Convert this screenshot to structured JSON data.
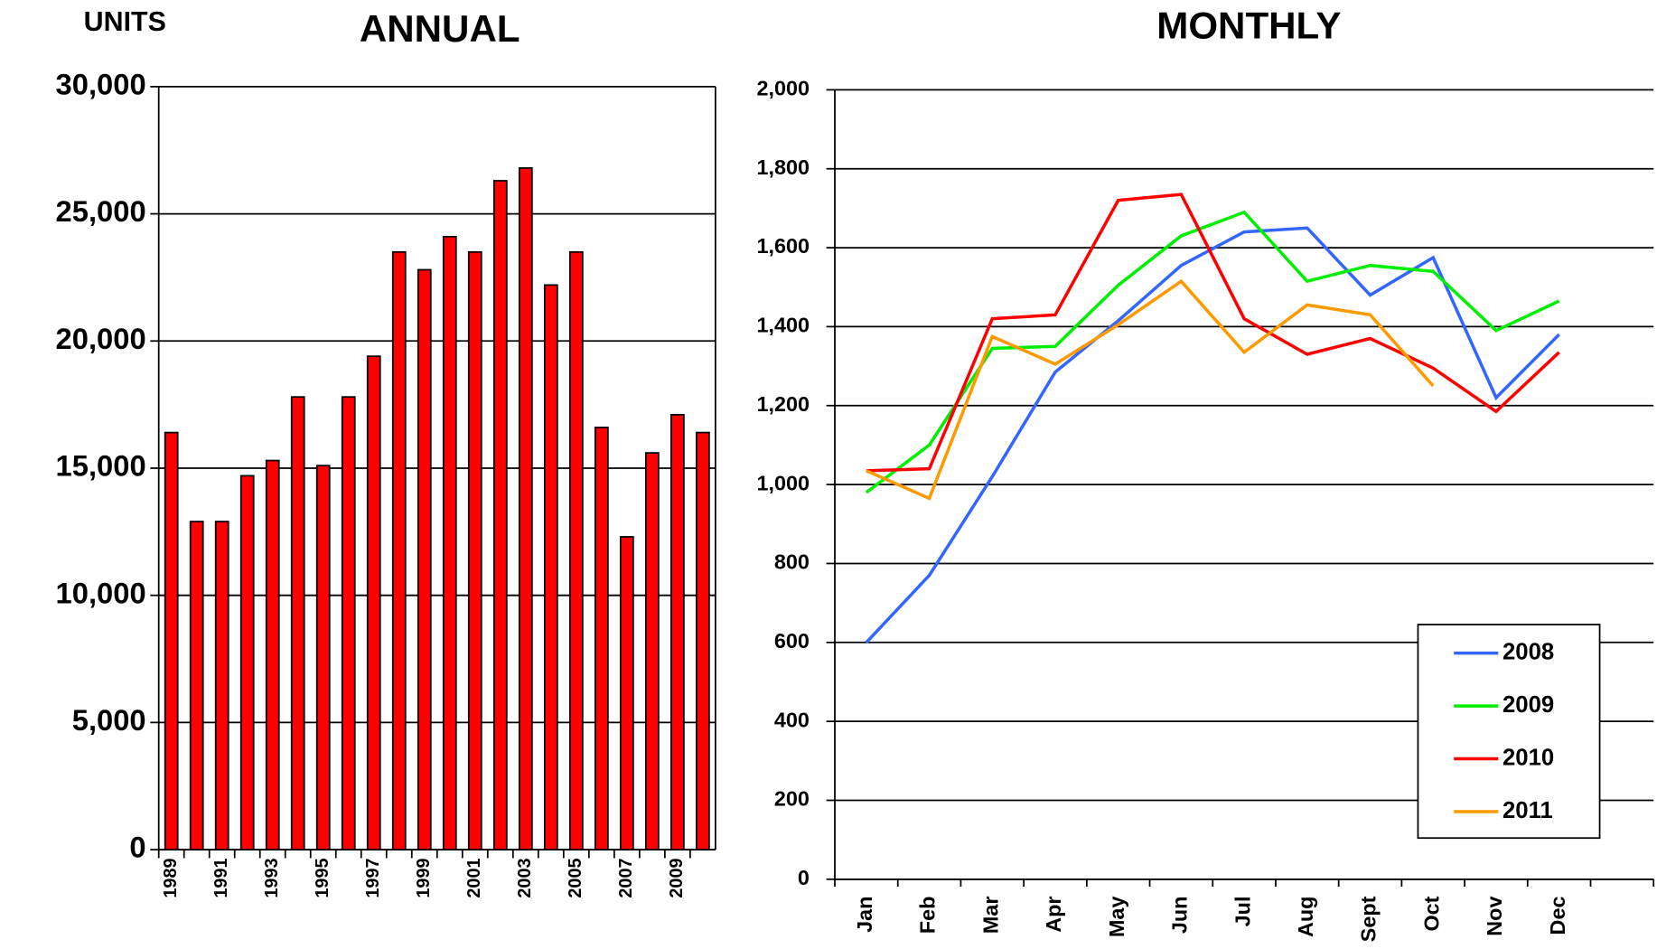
{
  "chart_data": [
    {
      "type": "bar",
      "title": "ANNUAL",
      "y_label": "UNITS",
      "categories": [
        "1989",
        null,
        "1991",
        null,
        "1993",
        null,
        "1995",
        null,
        "1997",
        null,
        "1999",
        null,
        "2001",
        null,
        "2003",
        null,
        "2005",
        null,
        "2007",
        null,
        "2009",
        null
      ],
      "values": [
        16400,
        12900,
        12900,
        14700,
        15300,
        17800,
        15100,
        17800,
        19400,
        23500,
        22800,
        24100,
        23500,
        26300,
        26800,
        22200,
        23500,
        16600,
        12300,
        15600,
        17100,
        16400
      ],
      "color": "#ff0000",
      "ylim": [
        0,
        30000
      ],
      "yticks": [
        0,
        {
          "value": 5000,
          "label": "5,000"
        },
        {
          "value": 10000,
          "label": "10,000"
        },
        {
          "value": 15000,
          "label": "15,000"
        },
        {
          "value": 20000,
          "label": "20,000"
        },
        {
          "value": 25000,
          "label": "25,000"
        },
        {
          "value": 30000,
          "label": "30,000"
        }
      ],
      "grid": true
    },
    {
      "type": "line",
      "title": "MONTHLY",
      "categories": [
        "Jan",
        "Feb",
        "Mar",
        "Apr",
        "May",
        "Jun",
        "Jul",
        "Aug",
        "Sept",
        "Oct",
        "Nov",
        "Dec"
      ],
      "series": [
        {
          "name": "2008",
          "color": "#3366ff",
          "values": [
            600,
            770,
            1020,
            1285,
            1415,
            1555,
            1640,
            1650,
            1480,
            1575,
            1220,
            1380
          ]
        },
        {
          "name": "2009",
          "color": "#00ee00",
          "values": [
            980,
            1100,
            1345,
            1350,
            1505,
            1630,
            1690,
            1515,
            1555,
            1540,
            1390,
            1465
          ]
        },
        {
          "name": "2010",
          "color": "#ff0000",
          "values": [
            1035,
            1040,
            1420,
            1430,
            1720,
            1735,
            1420,
            1330,
            1370,
            1295,
            1185,
            1335
          ]
        },
        {
          "name": "2011",
          "color": "#ff9900",
          "values": [
            1035,
            965,
            1375,
            1305,
            1405,
            1515,
            1335,
            1455,
            1430,
            1250,
            null,
            null
          ]
        }
      ],
      "ylim": [
        0,
        2000
      ],
      "yticks": [
        0,
        200,
        400,
        600,
        800,
        {
          "value": 1000,
          "label": "1,000"
        },
        {
          "value": 1200,
          "label": "1,200"
        },
        {
          "value": 1400,
          "label": "1,400"
        },
        {
          "value": 1600,
          "label": "1,600"
        },
        {
          "value": 1800,
          "label": "1,800"
        },
        {
          "value": 2000,
          "label": "2,000"
        }
      ],
      "grid": true,
      "legend": "lower right"
    }
  ]
}
